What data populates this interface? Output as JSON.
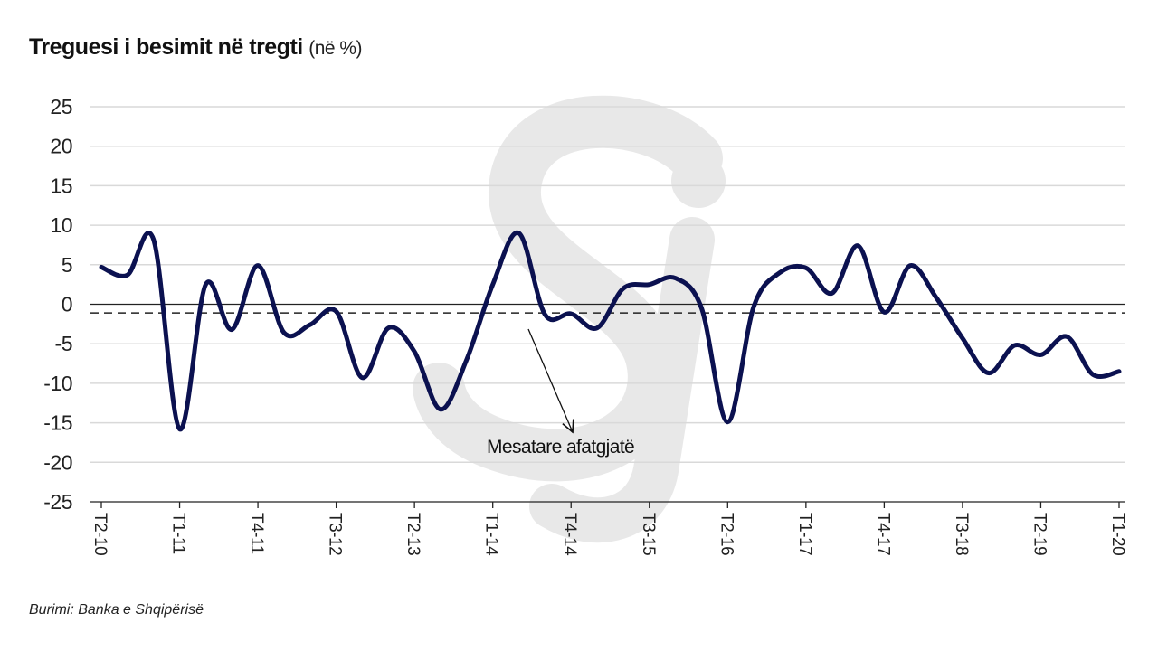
{
  "title": "Treguesi i besimit në tregti",
  "unit": "(në %)",
  "source": "Burimi: Banka e Shqipërisë",
  "watermark": "Sj",
  "chart_data": {
    "type": "line",
    "title": "Treguesi i besimit në tregti (në %)",
    "xlabel": "",
    "ylabel": "",
    "ylim": [
      -25,
      25
    ],
    "yticks": [
      25,
      20,
      15,
      10,
      5,
      0,
      -5,
      -10,
      -15,
      -20,
      -25
    ],
    "grid": true,
    "x": [
      "T2-10",
      "T3-10",
      "T4-10",
      "T1-11",
      "T2-11",
      "T3-11",
      "T4-11",
      "T1-12",
      "T2-12",
      "T3-12",
      "T4-12",
      "T1-13",
      "T2-13",
      "T3-13",
      "T4-13",
      "T1-14",
      "T2-14",
      "T3-14",
      "T4-14",
      "T1-15",
      "T2-15",
      "T3-15",
      "T4-15",
      "T1-16",
      "T2-16",
      "T3-16",
      "T4-16",
      "T1-17",
      "T2-17",
      "T3-17",
      "T4-17",
      "T1-18",
      "T2-18",
      "T3-18",
      "T4-18",
      "T1-19",
      "T2-19",
      "T3-19",
      "T4-19",
      "T1-20"
    ],
    "xticks": [
      "T2-10",
      "T1-11",
      "T4-11",
      "T3-12",
      "T2-13",
      "T1-14",
      "T4-14",
      "T3-15",
      "T2-16",
      "T1-17",
      "T4-17",
      "T3-18",
      "T2-19",
      "T1-20"
    ],
    "series": [
      {
        "name": "Treguesi i besimit në tregti",
        "color": "#0b1150",
        "values": [
          4.7,
          3.7,
          8.2,
          -15.8,
          2.5,
          -3.2,
          4.9,
          -3.6,
          -2.6,
          -0.9,
          -9.3,
          -3.0,
          -6.0,
          -13.3,
          -7.0,
          2.5,
          9.0,
          -1.3,
          -1.2,
          -3.0,
          2.0,
          2.5,
          3.3,
          -0.5,
          -14.9,
          -0.3,
          4.0,
          4.6,
          1.4,
          7.4,
          -1.0,
          4.9,
          0.8,
          -4.3,
          -8.7,
          -5.2,
          -6.4,
          -4.1,
          -8.9,
          -8.5
        ]
      }
    ],
    "reference_line": {
      "label": "Mesatare afatgjatë",
      "value": -1.1,
      "style": "dashed"
    },
    "annotation": "Mesatare afatgjatë"
  }
}
